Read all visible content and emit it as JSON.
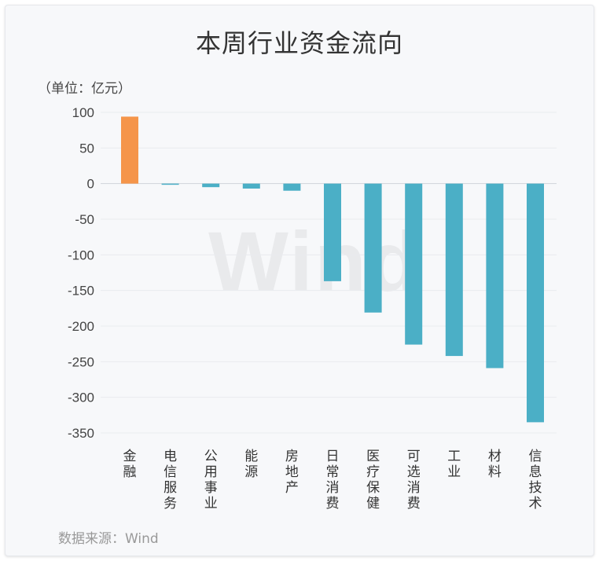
{
  "title": "本周行业资金流向",
  "unit_label": "（单位：亿元）",
  "source": "数据来源：Wind",
  "watermark": "Wind",
  "colors": {
    "positive": "#f5954a",
    "negative": "#4bafc6",
    "grid": "#e9ebef",
    "axis": "#d0d4da"
  },
  "chart_data": {
    "type": "bar",
    "title": "本周行业资金流向",
    "ylabel": "（单位：亿元）",
    "xlabel": "",
    "categories": [
      "金融",
      "电信服务",
      "公用事业",
      "能源",
      "房地产",
      "日常消费",
      "医疗保健",
      "可选消费",
      "工业",
      "材料",
      "信息技术"
    ],
    "values": [
      94,
      -1,
      -5,
      -7,
      -10,
      -137,
      -181,
      -226,
      -242,
      -259,
      -335
    ],
    "ylim": [
      -350,
      100
    ],
    "yticks": [
      100,
      50,
      0,
      -50,
      -100,
      -150,
      -200,
      -250,
      -300,
      -350
    ],
    "grid": true,
    "legend": "none"
  }
}
